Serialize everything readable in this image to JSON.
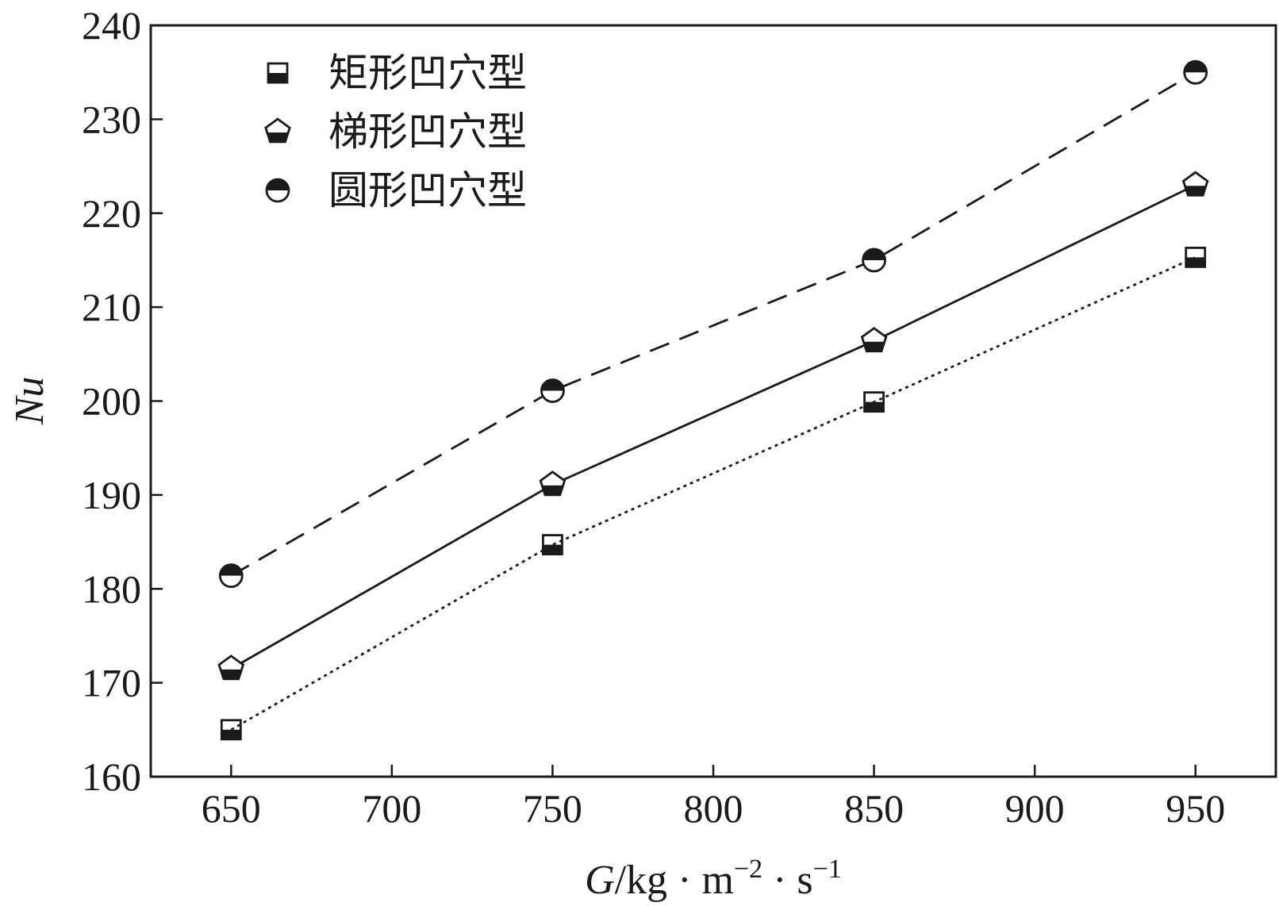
{
  "chart_data": {
    "type": "line",
    "xlabel": "G/kg · m⁻² · s⁻¹",
    "xlabel_parts": {
      "var": "G",
      "unit_a": "/kg · m",
      "exp_a": "−2",
      "unit_b": " · s",
      "exp_b": "−1"
    },
    "ylabel": "Nu",
    "xlim": [
      625,
      975
    ],
    "ylim": [
      160,
      240
    ],
    "xticks": [
      650,
      700,
      750,
      800,
      850,
      900,
      950
    ],
    "yticks": [
      160,
      170,
      180,
      190,
      200,
      210,
      220,
      230,
      240
    ],
    "x": [
      650,
      750,
      850,
      950
    ],
    "series": [
      {
        "name": "矩形凹穴型",
        "marker": "half-square",
        "line_style": "dotted",
        "values": [
          165,
          184.7,
          199.9,
          215.3
        ]
      },
      {
        "name": "梯形凹穴型",
        "marker": "half-pentagon",
        "line_style": "solid",
        "values": [
          171.5,
          191.1,
          206.4,
          223
        ]
      },
      {
        "name": "圆形凹穴型",
        "marker": "half-circle",
        "line_style": "dashed",
        "values": [
          181.4,
          201.1,
          215,
          235
        ]
      }
    ],
    "legend_position": "top-left",
    "grid": false
  }
}
